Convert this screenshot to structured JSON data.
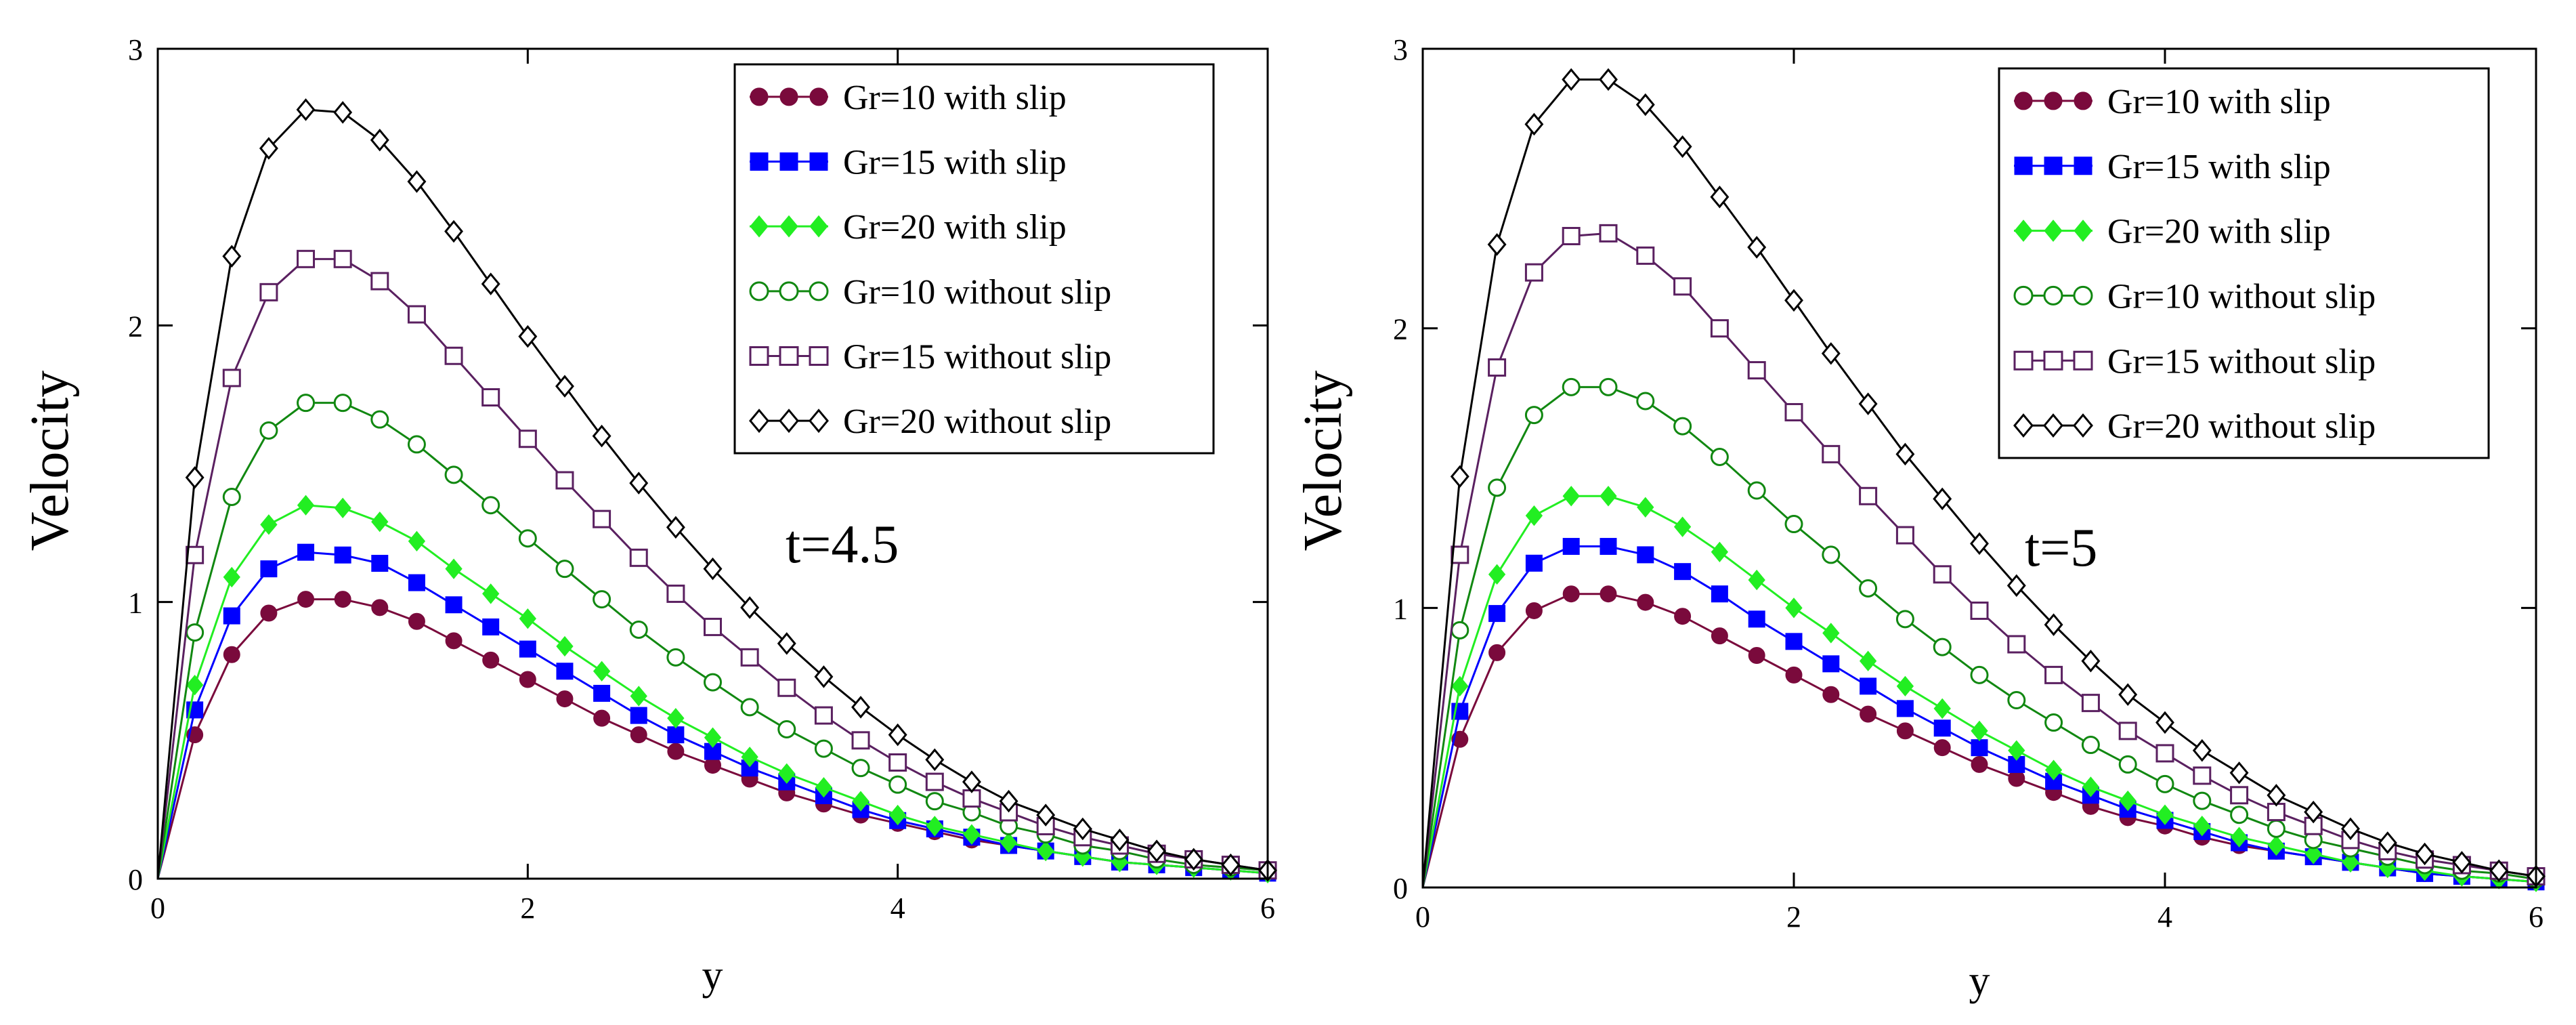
{
  "chart_data": [
    {
      "type": "line",
      "title": "",
      "annotation": "t=4.5",
      "xlabel": "y",
      "ylabel": "Velocity",
      "xlim": [
        0,
        6
      ],
      "ylim": [
        0,
        3
      ],
      "xticks": [
        0,
        2,
        4,
        6
      ],
      "yticks": [
        0,
        1,
        2,
        3
      ],
      "x_tick_labels": [
        "0",
        "2",
        "4",
        "6"
      ],
      "y_tick_labels": [
        "0",
        "1",
        "2",
        "3"
      ],
      "legend_position": "top-right",
      "x": [
        0,
        0.2,
        0.4,
        0.6,
        0.8,
        1.0,
        1.2,
        1.4,
        1.6,
        1.8,
        2.0,
        2.2,
        2.4,
        2.6,
        2.8,
        3.0,
        3.2,
        3.4,
        3.6,
        3.8,
        4.0,
        4.2,
        4.4,
        4.6,
        4.8,
        5.0,
        5.2,
        5.4,
        5.6,
        5.8,
        6.0
      ],
      "series": [
        {
          "name": "Gr=10  with slip",
          "marker": "filled-circle",
          "color": "#7a0a3c",
          "values": [
            0,
            0.52,
            0.81,
            0.96,
            1.01,
            1.01,
            0.98,
            0.93,
            0.86,
            0.79,
            0.72,
            0.65,
            0.58,
            0.52,
            0.46,
            0.41,
            0.36,
            0.31,
            0.27,
            0.23,
            0.2,
            0.17,
            0.14,
            0.12,
            0.1,
            0.08,
            0.06,
            0.05,
            0.04,
            0.03,
            0.02
          ]
        },
        {
          "name": "Gr=15 with slip",
          "marker": "filled-square",
          "color": "#0000ff",
          "values": [
            0,
            0.61,
            0.95,
            1.12,
            1.18,
            1.17,
            1.14,
            1.07,
            0.99,
            0.91,
            0.83,
            0.75,
            0.67,
            0.59,
            0.52,
            0.46,
            0.4,
            0.35,
            0.3,
            0.25,
            0.21,
            0.18,
            0.15,
            0.12,
            0.1,
            0.08,
            0.06,
            0.05,
            0.04,
            0.03,
            0.02
          ]
        },
        {
          "name": "Gr=20 with slip",
          "marker": "filled-diamond",
          "color": "#22ee22",
          "values": [
            0,
            0.7,
            1.09,
            1.28,
            1.35,
            1.34,
            1.29,
            1.22,
            1.12,
            1.03,
            0.94,
            0.84,
            0.75,
            0.66,
            0.58,
            0.51,
            0.44,
            0.38,
            0.33,
            0.28,
            0.23,
            0.19,
            0.16,
            0.13,
            0.1,
            0.08,
            0.06,
            0.05,
            0.04,
            0.03,
            0.02
          ]
        },
        {
          "name": "Gr=10 without slip",
          "marker": "open-circle",
          "color": "#118811",
          "values": [
            0,
            0.89,
            1.38,
            1.62,
            1.72,
            1.72,
            1.66,
            1.57,
            1.46,
            1.35,
            1.23,
            1.12,
            1.01,
            0.9,
            0.8,
            0.71,
            0.62,
            0.54,
            0.47,
            0.4,
            0.34,
            0.28,
            0.24,
            0.19,
            0.16,
            0.12,
            0.1,
            0.07,
            0.05,
            0.04,
            0.03
          ]
        },
        {
          "name": "Gr=15 without slip",
          "marker": "open-square",
          "color": "#5a2060",
          "values": [
            0,
            1.17,
            1.81,
            2.12,
            2.24,
            2.24,
            2.16,
            2.04,
            1.89,
            1.74,
            1.59,
            1.44,
            1.3,
            1.16,
            1.03,
            0.91,
            0.8,
            0.69,
            0.59,
            0.5,
            0.42,
            0.35,
            0.29,
            0.24,
            0.19,
            0.15,
            0.12,
            0.09,
            0.07,
            0.05,
            0.03
          ]
        },
        {
          "name": "Gr=20 without slip",
          "marker": "open-diamond",
          "color": "#000000",
          "values": [
            0,
            1.45,
            2.25,
            2.64,
            2.78,
            2.77,
            2.67,
            2.52,
            2.34,
            2.15,
            1.96,
            1.78,
            1.6,
            1.43,
            1.27,
            1.12,
            0.98,
            0.85,
            0.73,
            0.62,
            0.52,
            0.43,
            0.35,
            0.28,
            0.23,
            0.18,
            0.14,
            0.1,
            0.07,
            0.05,
            0.03
          ]
        }
      ]
    },
    {
      "type": "line",
      "title": "",
      "annotation": "t=5",
      "xlabel": "y",
      "ylabel": "Velocity",
      "xlim": [
        0,
        6
      ],
      "ylim": [
        0,
        3
      ],
      "xticks": [
        0,
        2,
        4,
        6
      ],
      "yticks": [
        0,
        1,
        2,
        3
      ],
      "x_tick_labels": [
        "0",
        "2",
        "4",
        "6"
      ],
      "y_tick_labels": [
        "0",
        "1",
        "2",
        "3"
      ],
      "legend_position": "top-right",
      "x": [
        0,
        0.2,
        0.4,
        0.6,
        0.8,
        1.0,
        1.2,
        1.4,
        1.6,
        1.8,
        2.0,
        2.2,
        2.4,
        2.6,
        2.8,
        3.0,
        3.2,
        3.4,
        3.6,
        3.8,
        4.0,
        4.2,
        4.4,
        4.6,
        4.8,
        5.0,
        5.2,
        5.4,
        5.6,
        5.8,
        6.0
      ],
      "series": [
        {
          "name": "Gr=10  with slip",
          "marker": "filled-circle",
          "color": "#7a0a3c",
          "values": [
            0,
            0.53,
            0.84,
            0.99,
            1.05,
            1.05,
            1.02,
            0.97,
            0.9,
            0.83,
            0.76,
            0.69,
            0.62,
            0.56,
            0.5,
            0.44,
            0.39,
            0.34,
            0.29,
            0.25,
            0.22,
            0.18,
            0.15,
            0.13,
            0.11,
            0.09,
            0.07,
            0.05,
            0.04,
            0.03,
            0.02
          ]
        },
        {
          "name": "Gr=15 with slip",
          "marker": "filled-square",
          "color": "#0000ff",
          "values": [
            0,
            0.63,
            0.98,
            1.16,
            1.22,
            1.22,
            1.19,
            1.13,
            1.05,
            0.96,
            0.88,
            0.8,
            0.72,
            0.64,
            0.57,
            0.5,
            0.44,
            0.38,
            0.33,
            0.28,
            0.24,
            0.2,
            0.16,
            0.13,
            0.11,
            0.09,
            0.07,
            0.05,
            0.04,
            0.03,
            0.02
          ]
        },
        {
          "name": "Gr=20 with slip",
          "marker": "filled-diamond",
          "color": "#22ee22",
          "values": [
            0,
            0.72,
            1.12,
            1.33,
            1.4,
            1.4,
            1.36,
            1.29,
            1.2,
            1.1,
            1.0,
            0.91,
            0.81,
            0.72,
            0.64,
            0.56,
            0.49,
            0.42,
            0.36,
            0.31,
            0.26,
            0.22,
            0.18,
            0.15,
            0.12,
            0.09,
            0.07,
            0.06,
            0.04,
            0.03,
            0.02
          ]
        },
        {
          "name": "Gr=10 without slip",
          "marker": "open-circle",
          "color": "#118811",
          "values": [
            0,
            0.92,
            1.43,
            1.69,
            1.79,
            1.79,
            1.74,
            1.65,
            1.54,
            1.42,
            1.3,
            1.19,
            1.07,
            0.96,
            0.86,
            0.76,
            0.67,
            0.59,
            0.51,
            0.44,
            0.37,
            0.31,
            0.26,
            0.21,
            0.17,
            0.14,
            0.11,
            0.08,
            0.06,
            0.05,
            0.03
          ]
        },
        {
          "name": "Gr=15 without slip",
          "marker": "open-square",
          "color": "#5a2060",
          "values": [
            0,
            1.19,
            1.86,
            2.2,
            2.33,
            2.34,
            2.26,
            2.15,
            2.0,
            1.85,
            1.7,
            1.55,
            1.4,
            1.26,
            1.12,
            0.99,
            0.87,
            0.76,
            0.66,
            0.56,
            0.48,
            0.4,
            0.33,
            0.27,
            0.22,
            0.17,
            0.13,
            0.1,
            0.08,
            0.06,
            0.04
          ]
        },
        {
          "name": "Gr=20 without slip",
          "marker": "open-diamond",
          "color": "#000000",
          "values": [
            0,
            1.47,
            2.3,
            2.73,
            2.89,
            2.89,
            2.8,
            2.65,
            2.47,
            2.29,
            2.1,
            1.91,
            1.73,
            1.55,
            1.39,
            1.23,
            1.08,
            0.94,
            0.81,
            0.69,
            0.59,
            0.49,
            0.41,
            0.33,
            0.27,
            0.21,
            0.16,
            0.12,
            0.09,
            0.06,
            0.04
          ]
        }
      ]
    }
  ]
}
